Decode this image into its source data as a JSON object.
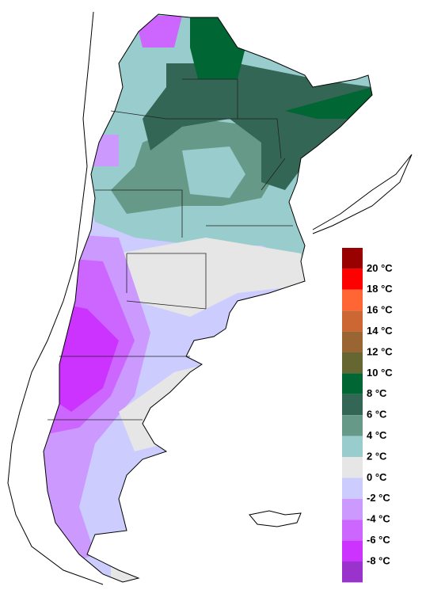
{
  "legend": {
    "labels": [
      "20 °C",
      "18 °C",
      "16 °C",
      "14 °C",
      "12 °C",
      "10 °C",
      "8 °C",
      "6 °C",
      "4 °C",
      "2 °C",
      "0 °C",
      "-2 °C",
      "-4 °C",
      "-6 °C",
      "-8 °C"
    ],
    "colors": [
      "#990000",
      "#ff0000",
      "#ff6633",
      "#cc6633",
      "#996633",
      "#666633",
      "#006633",
      "#336655",
      "#669988",
      "#99cccc",
      "#e6e6e6",
      "#ccccff",
      "#cc99ff",
      "#cc66ff",
      "#cc33ff",
      "#9933cc"
    ]
  }
}
